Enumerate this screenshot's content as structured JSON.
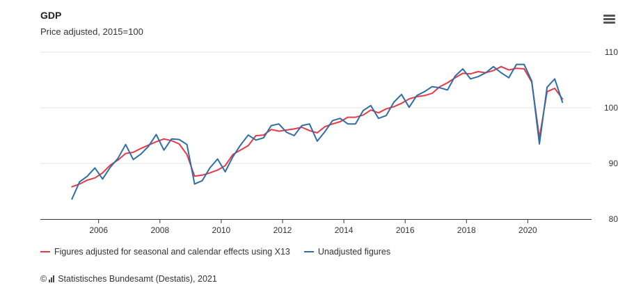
{
  "chart_data": {
    "type": "line",
    "title": "GDP",
    "subtitle": "Price adjusted, 2015=100",
    "x_ticks": [
      "2006",
      "2008",
      "2010",
      "2012",
      "2014",
      "2016",
      "2018",
      "2020"
    ],
    "y_ticks": [
      "80",
      "90",
      "100",
      "110"
    ],
    "xlim": [
      2004.1,
      2022.08
    ],
    "ylim": [
      80,
      110
    ],
    "grid": true,
    "legend_position": "bottom-left",
    "series": [
      {
        "name": "Figures adjusted for seasonal and calendar effects using X13",
        "color": "#e63946",
        "x": [
          2005.13,
          2005.38,
          2005.63,
          2005.88,
          2006.13,
          2006.38,
          2006.63,
          2006.88,
          2007.13,
          2007.38,
          2007.63,
          2007.88,
          2008.13,
          2008.38,
          2008.63,
          2008.88,
          2009.13,
          2009.38,
          2009.63,
          2009.88,
          2010.13,
          2010.38,
          2010.63,
          2010.88,
          2011.13,
          2011.38,
          2011.63,
          2011.88,
          2012.13,
          2012.38,
          2012.63,
          2012.88,
          2013.13,
          2013.38,
          2013.63,
          2013.88,
          2014.13,
          2014.38,
          2014.63,
          2014.88,
          2015.13,
          2015.38,
          2015.63,
          2015.88,
          2016.13,
          2016.38,
          2016.63,
          2016.88,
          2017.13,
          2017.38,
          2017.63,
          2017.88,
          2018.13,
          2018.38,
          2018.63,
          2018.88,
          2019.13,
          2019.38,
          2019.63,
          2019.88,
          2020.13,
          2020.38,
          2020.63,
          2020.88,
          2021.13
        ],
        "values": [
          85.8,
          86.3,
          87.0,
          87.4,
          88.3,
          89.7,
          90.6,
          91.8,
          92.0,
          92.7,
          93.3,
          93.9,
          94.4,
          94.1,
          93.5,
          91.6,
          87.7,
          87.9,
          88.3,
          88.8,
          89.6,
          91.6,
          92.4,
          93.2,
          95.0,
          95.1,
          96.1,
          95.8,
          96.0,
          96.2,
          96.5,
          95.9,
          95.5,
          96.6,
          97.1,
          97.5,
          98.3,
          98.3,
          98.7,
          99.6,
          99.1,
          99.8,
          100.2,
          100.8,
          101.6,
          102.0,
          102.2,
          102.6,
          103.8,
          104.5,
          105.4,
          106.2,
          106.1,
          106.5,
          106.3,
          106.7,
          107.4,
          106.8,
          107.1,
          107.0,
          104.6,
          94.6,
          102.9,
          103.5,
          101.6
        ]
      },
      {
        "name": "Unadjusted figures",
        "color": "#2e6ea6",
        "x": [
          2005.13,
          2005.38,
          2005.63,
          2005.88,
          2006.13,
          2006.38,
          2006.63,
          2006.88,
          2007.13,
          2007.38,
          2007.63,
          2007.88,
          2008.13,
          2008.38,
          2008.63,
          2008.88,
          2009.13,
          2009.38,
          2009.63,
          2009.88,
          2010.13,
          2010.38,
          2010.63,
          2010.88,
          2011.13,
          2011.38,
          2011.63,
          2011.88,
          2012.13,
          2012.38,
          2012.63,
          2012.88,
          2013.13,
          2013.38,
          2013.63,
          2013.88,
          2014.13,
          2014.38,
          2014.63,
          2014.88,
          2015.13,
          2015.38,
          2015.63,
          2015.88,
          2016.13,
          2016.38,
          2016.63,
          2016.88,
          2017.13,
          2017.38,
          2017.63,
          2017.88,
          2018.13,
          2018.38,
          2018.63,
          2018.88,
          2019.13,
          2019.38,
          2019.63,
          2019.88,
          2020.13,
          2020.38,
          2020.63,
          2020.88,
          2021.13
        ],
        "values": [
          83.6,
          86.7,
          87.7,
          89.2,
          87.2,
          89.3,
          90.9,
          93.4,
          90.7,
          91.7,
          93.1,
          95.2,
          92.4,
          94.4,
          94.3,
          93.4,
          86.3,
          86.9,
          89.2,
          90.8,
          88.5,
          91.2,
          93.3,
          95.1,
          94.2,
          94.6,
          96.8,
          97.1,
          95.6,
          95.0,
          96.8,
          97.1,
          94.0,
          95.7,
          97.7,
          98.1,
          97.1,
          97.1,
          99.5,
          100.4,
          98.1,
          98.6,
          101.0,
          102.4,
          100.1,
          102.2,
          102.9,
          103.8,
          103.6,
          103.2,
          105.7,
          107.0,
          105.2,
          105.6,
          106.3,
          107.4,
          106.3,
          105.4,
          107.8,
          107.8,
          104.8,
          93.5,
          103.7,
          105.2,
          101.0
        ]
      }
    ]
  },
  "source": {
    "copyright": "©",
    "text": "Statistisches Bundesamt (Destatis), 2021"
  }
}
